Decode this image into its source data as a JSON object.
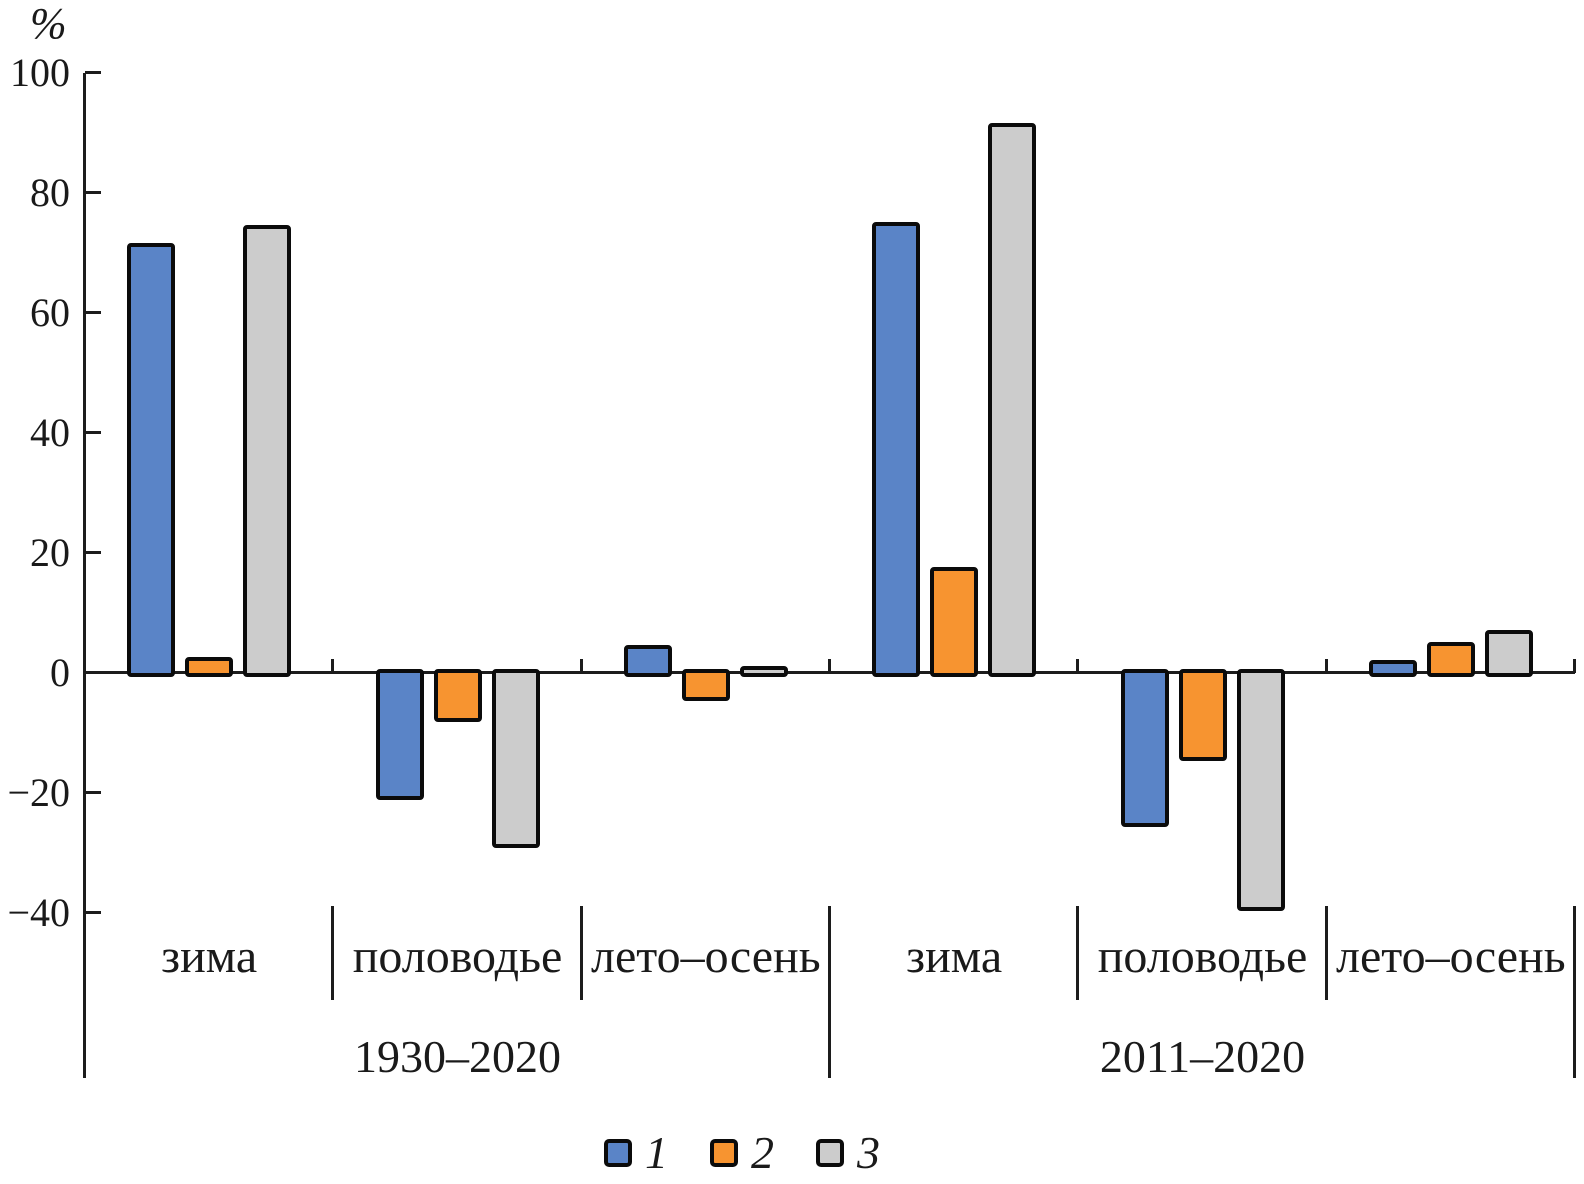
{
  "chart_data": {
    "type": "bar",
    "ylabel": "%",
    "ylim": [
      -40,
      100
    ],
    "yticks": [
      100,
      80,
      60,
      40,
      20,
      0,
      -20,
      -40
    ],
    "ytick_labels": [
      "100",
      "80",
      "60",
      "40",
      "20",
      "0",
      "−20",
      "−40"
    ],
    "grid": false,
    "legend_position": "bottom",
    "series": [
      {
        "name": "1",
        "color": "#5A84C7"
      },
      {
        "name": "2",
        "color": "#F79430"
      },
      {
        "name": "3",
        "color": "#CCCCCC"
      }
    ],
    "groups": [
      {
        "label": "1930–2020",
        "categories": [
          {
            "label": "зима",
            "key": "winter",
            "values": [
              71,
              2,
              74
            ]
          },
          {
            "label": "половодье",
            "key": "flood",
            "values": [
              -20.5,
              -7.5,
              -28.5
            ]
          },
          {
            "label": "лето–осень",
            "key": "summer-autumn",
            "values": [
              4,
              -4,
              0.5
            ]
          }
        ]
      },
      {
        "label": "2011–2020",
        "categories": [
          {
            "label": "зима",
            "key": "winter",
            "values": [
              74.5,
              17,
              91
            ]
          },
          {
            "label": "половодье",
            "key": "flood",
            "values": [
              -25,
              -14,
              -39
            ]
          },
          {
            "label": "лето–осень",
            "key": "summer-autumn",
            "values": [
              1.5,
              4.5,
              6.5
            ]
          }
        ]
      }
    ]
  }
}
